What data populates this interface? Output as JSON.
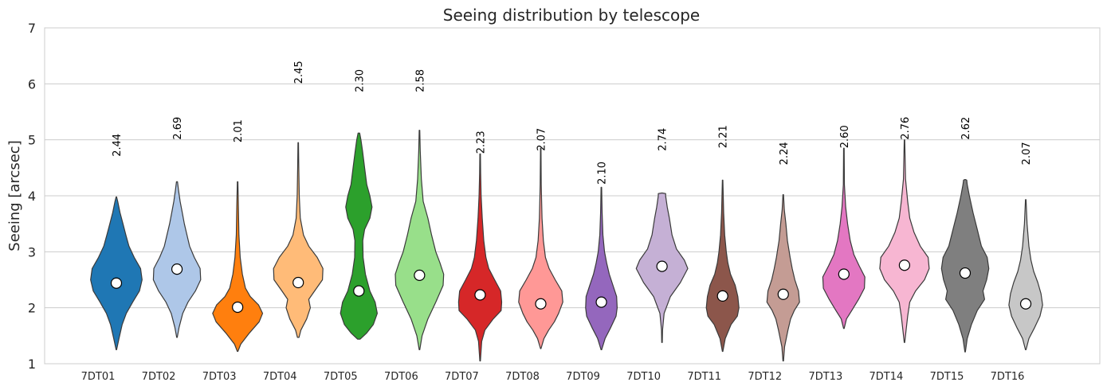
{
  "chart_data": {
    "type": "violin",
    "title": "Seeing distribution by telescope",
    "xlabel": "",
    "ylabel": "Seeing [arcsec]",
    "ylim": [
      1,
      7
    ],
    "yticks": [
      "1",
      "2",
      "3",
      "4",
      "5",
      "6",
      "7"
    ],
    "grid": true,
    "categories": [
      "7DT01",
      "7DT02",
      "7DT03",
      "7DT04",
      "7DT05",
      "7DT06",
      "7DT07",
      "7DT08",
      "7DT09",
      "7DT10",
      "7DT11",
      "7DT12",
      "7DT13",
      "7DT14",
      "7DT15",
      "7DT16"
    ],
    "medians": [
      2.44,
      2.69,
      2.01,
      2.45,
      2.3,
      2.58,
      2.23,
      2.07,
      2.1,
      2.74,
      2.21,
      2.24,
      2.6,
      2.76,
      2.62,
      2.07
    ],
    "median_labels": [
      "2.44",
      "2.69",
      "2.01",
      "2.45",
      "2.30",
      "2.58",
      "2.23",
      "2.07",
      "2.10",
      "2.74",
      "2.21",
      "2.24",
      "2.60",
      "2.76",
      "2.62",
      "2.07"
    ],
    "label_positions": [
      4.7,
      5.0,
      4.95,
      6.0,
      5.85,
      5.85,
      4.75,
      4.8,
      4.2,
      4.8,
      4.85,
      4.55,
      4.85,
      5.0,
      5.0,
      4.55
    ],
    "colors": [
      "#1f77b4",
      "#aec7e8",
      "#ff7f0e",
      "#ffbb78",
      "#2ca02c",
      "#98df8a",
      "#d62728",
      "#ff9896",
      "#9467bd",
      "#c5b0d5",
      "#8c564b",
      "#c49c94",
      "#e377c2",
      "#f7b6d2",
      "#7f7f7f",
      "#c7c7c7"
    ],
    "shapes": [
      [
        [
          1.25,
          0.01
        ],
        [
          1.45,
          0.1
        ],
        [
          1.7,
          0.22
        ],
        [
          1.9,
          0.38
        ],
        [
          2.1,
          0.62
        ],
        [
          2.3,
          0.88
        ],
        [
          2.5,
          0.98
        ],
        [
          2.7,
          0.92
        ],
        [
          2.9,
          0.68
        ],
        [
          3.1,
          0.48
        ],
        [
          3.3,
          0.36
        ],
        [
          3.5,
          0.25
        ],
        [
          3.7,
          0.14
        ],
        [
          3.9,
          0.05
        ],
        [
          3.98,
          0.01
        ]
      ],
      [
        [
          1.47,
          0.01
        ],
        [
          1.65,
          0.08
        ],
        [
          1.9,
          0.22
        ],
        [
          2.1,
          0.42
        ],
        [
          2.3,
          0.7
        ],
        [
          2.5,
          0.9
        ],
        [
          2.7,
          0.88
        ],
        [
          2.9,
          0.66
        ],
        [
          3.1,
          0.48
        ],
        [
          3.3,
          0.38
        ],
        [
          3.5,
          0.28
        ],
        [
          3.7,
          0.2
        ],
        [
          3.9,
          0.12
        ],
        [
          4.1,
          0.06
        ],
        [
          4.25,
          0.02
        ]
      ],
      [
        [
          1.22,
          0.01
        ],
        [
          1.35,
          0.12
        ],
        [
          1.55,
          0.45
        ],
        [
          1.75,
          0.82
        ],
        [
          1.9,
          0.95
        ],
        [
          2.05,
          0.8
        ],
        [
          2.2,
          0.48
        ],
        [
          2.35,
          0.3
        ],
        [
          2.6,
          0.18
        ],
        [
          2.9,
          0.1
        ],
        [
          3.3,
          0.05
        ],
        [
          3.8,
          0.03
        ],
        [
          4.25,
          0.01
        ]
      ],
      [
        [
          1.47,
          0.03
        ],
        [
          1.6,
          0.1
        ],
        [
          1.8,
          0.32
        ],
        [
          2.0,
          0.46
        ],
        [
          2.15,
          0.4
        ],
        [
          2.3,
          0.62
        ],
        [
          2.5,
          0.92
        ],
        [
          2.7,
          0.94
        ],
        [
          2.9,
          0.72
        ],
        [
          3.1,
          0.4
        ],
        [
          3.3,
          0.2
        ],
        [
          3.6,
          0.08
        ],
        [
          4.0,
          0.04
        ],
        [
          4.5,
          0.02
        ],
        [
          4.95,
          0.01
        ]
      ],
      [
        [
          1.44,
          0.05
        ],
        [
          1.55,
          0.3
        ],
        [
          1.7,
          0.55
        ],
        [
          1.9,
          0.7
        ],
        [
          2.1,
          0.62
        ],
        [
          2.3,
          0.42
        ],
        [
          2.6,
          0.25
        ],
        [
          2.9,
          0.16
        ],
        [
          3.2,
          0.15
        ],
        [
          3.4,
          0.22
        ],
        [
          3.6,
          0.42
        ],
        [
          3.8,
          0.5
        ],
        [
          4.0,
          0.42
        ],
        [
          4.2,
          0.3
        ],
        [
          4.5,
          0.22
        ],
        [
          4.8,
          0.14
        ],
        [
          5.0,
          0.08
        ],
        [
          5.12,
          0.03
        ]
      ],
      [
        [
          1.25,
          0.01
        ],
        [
          1.5,
          0.1
        ],
        [
          1.8,
          0.32
        ],
        [
          2.1,
          0.62
        ],
        [
          2.4,
          0.9
        ],
        [
          2.6,
          0.92
        ],
        [
          2.8,
          0.78
        ],
        [
          3.0,
          0.62
        ],
        [
          3.3,
          0.46
        ],
        [
          3.6,
          0.32
        ],
        [
          3.9,
          0.14
        ],
        [
          4.3,
          0.07
        ],
        [
          4.8,
          0.03
        ],
        [
          5.17,
          0.01
        ]
      ],
      [
        [
          1.05,
          0.01
        ],
        [
          1.4,
          0.06
        ],
        [
          1.6,
          0.18
        ],
        [
          1.8,
          0.5
        ],
        [
          1.95,
          0.8
        ],
        [
          2.1,
          0.82
        ],
        [
          2.3,
          0.78
        ],
        [
          2.5,
          0.55
        ],
        [
          2.7,
          0.33
        ],
        [
          2.9,
          0.22
        ],
        [
          3.2,
          0.14
        ],
        [
          3.6,
          0.08
        ],
        [
          4.0,
          0.04
        ],
        [
          4.4,
          0.02
        ],
        [
          4.75,
          0.01
        ]
      ],
      [
        [
          1.27,
          0.01
        ],
        [
          1.45,
          0.12
        ],
        [
          1.6,
          0.3
        ],
        [
          1.75,
          0.52
        ],
        [
          1.9,
          0.68
        ],
        [
          2.1,
          0.84
        ],
        [
          2.3,
          0.8
        ],
        [
          2.5,
          0.55
        ],
        [
          2.7,
          0.32
        ],
        [
          2.9,
          0.18
        ],
        [
          3.2,
          0.1
        ],
        [
          3.6,
          0.05
        ],
        [
          4.2,
          0.02
        ],
        [
          4.85,
          0.01
        ]
      ],
      [
        [
          1.25,
          0.01
        ],
        [
          1.45,
          0.14
        ],
        [
          1.65,
          0.36
        ],
        [
          1.85,
          0.56
        ],
        [
          2.0,
          0.6
        ],
        [
          2.2,
          0.58
        ],
        [
          2.4,
          0.44
        ],
        [
          2.6,
          0.3
        ],
        [
          2.8,
          0.2
        ],
        [
          3.0,
          0.12
        ],
        [
          3.3,
          0.06
        ],
        [
          3.7,
          0.03
        ],
        [
          4.15,
          0.01
        ]
      ],
      [
        [
          1.38,
          0.01
        ],
        [
          1.6,
          0.02
        ],
        [
          1.9,
          0.08
        ],
        [
          2.2,
          0.32
        ],
        [
          2.45,
          0.7
        ],
        [
          2.7,
          0.98
        ],
        [
          2.85,
          0.85
        ],
        [
          3.05,
          0.55
        ],
        [
          3.3,
          0.38
        ],
        [
          3.6,
          0.28
        ],
        [
          3.8,
          0.2
        ],
        [
          4.0,
          0.14
        ],
        [
          4.04,
          0.14
        ],
        [
          4.05,
          0.01
        ]
      ],
      [
        [
          1.22,
          0.01
        ],
        [
          1.45,
          0.1
        ],
        [
          1.7,
          0.32
        ],
        [
          1.85,
          0.56
        ],
        [
          2.0,
          0.62
        ],
        [
          2.2,
          0.58
        ],
        [
          2.4,
          0.48
        ],
        [
          2.6,
          0.3
        ],
        [
          2.8,
          0.2
        ],
        [
          3.0,
          0.14
        ],
        [
          3.3,
          0.08
        ],
        [
          3.7,
          0.04
        ],
        [
          4.28,
          0.01
        ]
      ],
      [
        [
          1.05,
          0.01
        ],
        [
          1.3,
          0.05
        ],
        [
          1.6,
          0.18
        ],
        [
          1.8,
          0.28
        ],
        [
          1.95,
          0.42
        ],
        [
          2.1,
          0.62
        ],
        [
          2.3,
          0.58
        ],
        [
          2.5,
          0.44
        ],
        [
          2.7,
          0.34
        ],
        [
          2.9,
          0.26
        ],
        [
          3.2,
          0.16
        ],
        [
          3.5,
          0.1
        ],
        [
          3.75,
          0.04
        ],
        [
          4.02,
          0.01
        ]
      ],
      [
        [
          1.63,
          0.01
        ],
        [
          1.8,
          0.1
        ],
        [
          1.95,
          0.3
        ],
        [
          2.15,
          0.56
        ],
        [
          2.35,
          0.78
        ],
        [
          2.55,
          0.8
        ],
        [
          2.75,
          0.58
        ],
        [
          2.95,
          0.38
        ],
        [
          3.2,
          0.24
        ],
        [
          3.5,
          0.14
        ],
        [
          3.8,
          0.07
        ],
        [
          4.2,
          0.02
        ],
        [
          4.85,
          0.01
        ]
      ],
      [
        [
          1.38,
          0.01
        ],
        [
          1.6,
          0.06
        ],
        [
          1.85,
          0.12
        ],
        [
          2.1,
          0.2
        ],
        [
          2.3,
          0.42
        ],
        [
          2.5,
          0.76
        ],
        [
          2.7,
          0.94
        ],
        [
          2.9,
          0.9
        ],
        [
          3.1,
          0.6
        ],
        [
          3.35,
          0.36
        ],
        [
          3.6,
          0.2
        ],
        [
          3.9,
          0.12
        ],
        [
          4.3,
          0.04
        ],
        [
          5.0,
          0.01
        ]
      ],
      [
        [
          1.21,
          0.01
        ],
        [
          1.45,
          0.08
        ],
        [
          1.7,
          0.24
        ],
        [
          1.95,
          0.46
        ],
        [
          2.15,
          0.74
        ],
        [
          2.3,
          0.68
        ],
        [
          2.5,
          0.82
        ],
        [
          2.7,
          0.9
        ],
        [
          2.9,
          0.84
        ],
        [
          3.1,
          0.62
        ],
        [
          3.4,
          0.46
        ],
        [
          3.7,
          0.3
        ],
        [
          4.0,
          0.16
        ],
        [
          4.2,
          0.08
        ],
        [
          4.28,
          0.06
        ],
        [
          4.29,
          0.01
        ]
      ],
      [
        [
          1.25,
          0.01
        ],
        [
          1.45,
          0.12
        ],
        [
          1.65,
          0.34
        ],
        [
          1.85,
          0.54
        ],
        [
          2.05,
          0.64
        ],
        [
          2.25,
          0.58
        ],
        [
          2.45,
          0.46
        ],
        [
          2.65,
          0.3
        ],
        [
          2.85,
          0.2
        ],
        [
          3.1,
          0.12
        ],
        [
          3.5,
          0.05
        ],
        [
          3.93,
          0.01
        ]
      ]
    ]
  }
}
